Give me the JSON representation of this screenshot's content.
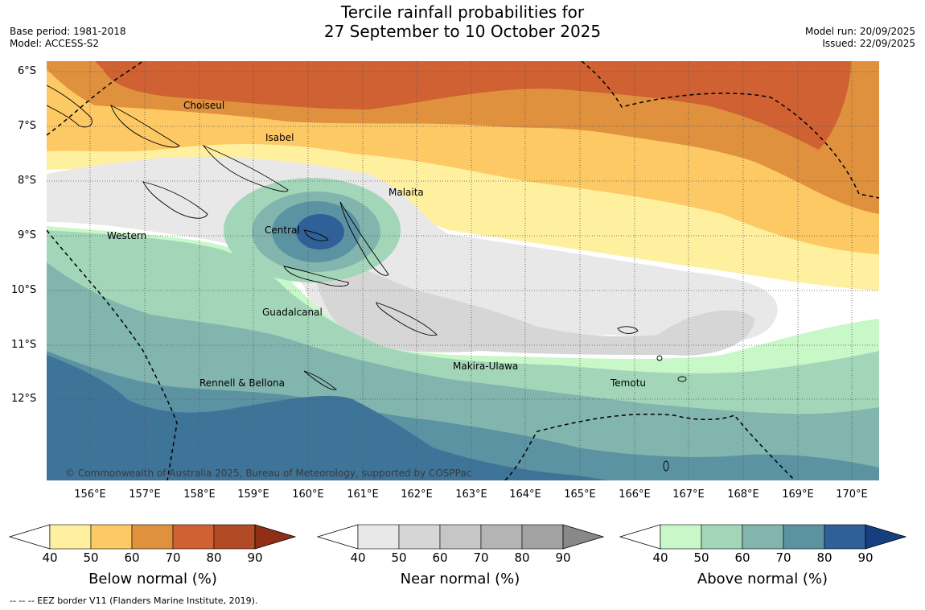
{
  "header": {
    "title_line1": "Tercile rainfall probabilities for",
    "title_line2": "27 September to 10 October 2025",
    "base_period": "Base period: 1981-2018",
    "model": "Model: ACCESS-S2",
    "model_run": "Model run: 20/09/2025",
    "issued": "Issued: 22/09/2025"
  },
  "map": {
    "lat_labels": [
      "6°S",
      "7°S",
      "8°S",
      "9°S",
      "10°S",
      "11°S",
      "12°S"
    ],
    "lon_labels": [
      "156°E",
      "157°E",
      "158°E",
      "159°E",
      "160°E",
      "161°E",
      "162°E",
      "163°E",
      "164°E",
      "165°E",
      "166°E",
      "167°E",
      "168°E",
      "169°E",
      "170°E"
    ],
    "regions": [
      {
        "name": "Choiseul"
      },
      {
        "name": "Isabel"
      },
      {
        "name": "Malaita"
      },
      {
        "name": "Western"
      },
      {
        "name": "Central"
      },
      {
        "name": "Guadalcanal"
      },
      {
        "name": "Makira-Ulawa"
      },
      {
        "name": "Rennell & Bellona"
      },
      {
        "name": "Temotu"
      }
    ],
    "copyright": "© Commonwealth of Australia 2025, Bureau of Meteorology, supported by COSPPac"
  },
  "colorbars": [
    {
      "title": "Below normal (%)",
      "ticks": [
        "40",
        "50",
        "60",
        "70",
        "80",
        "90"
      ],
      "colors": [
        "#fff0a0",
        "#fdc964",
        "#e0913e",
        "#cf6132",
        "#b34a26",
        "#8f2f18"
      ]
    },
    {
      "title": "Near normal (%)",
      "ticks": [
        "40",
        "50",
        "60",
        "70",
        "80",
        "90"
      ],
      "colors": [
        "#e8e8e8",
        "#d6d6d6",
        "#c6c6c6",
        "#b4b4b4",
        "#a2a2a2",
        "#888888"
      ]
    },
    {
      "title": "Above normal (%)",
      "ticks": [
        "40",
        "50",
        "60",
        "70",
        "80",
        "90"
      ],
      "colors": [
        "#c8f7c8",
        "#a3d6b9",
        "#82b5ad",
        "#5c93a3",
        "#2f6097",
        "#163f80"
      ]
    }
  ],
  "footnote": "--  --  -- EEZ border V11 (Flanders Marine Institute, 2019)."
}
